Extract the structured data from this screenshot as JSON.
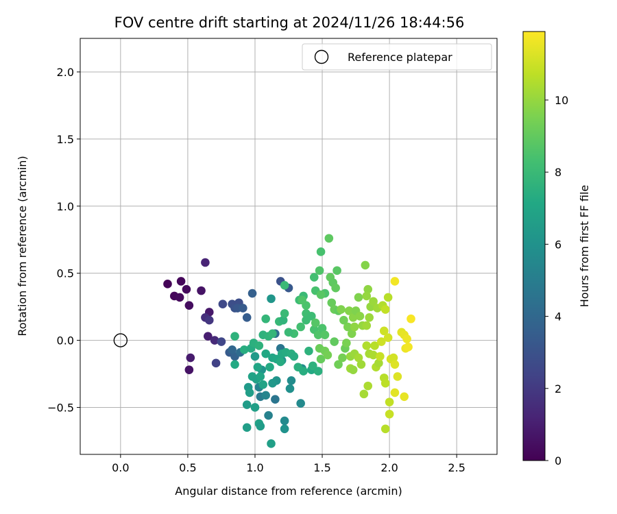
{
  "chart_data": {
    "type": "scatter",
    "title": "FOV centre drift starting at 2024/11/26 18:44:56",
    "xlabel": "Angular distance from reference (arcmin)",
    "ylabel": "Rotation from reference (arcmin)",
    "xlim": [
      -0.3,
      2.8
    ],
    "ylim": [
      -0.85,
      2.25
    ],
    "x_ticks": [
      0.0,
      0.5,
      1.0,
      1.5,
      2.0,
      2.5
    ],
    "x_tick_labels": [
      "0.0",
      "0.5",
      "1.0",
      "1.5",
      "2.0",
      "2.5"
    ],
    "y_ticks": [
      -0.5,
      0.0,
      0.5,
      1.0,
      1.5,
      2.0
    ],
    "y_tick_labels": [
      "−0.5",
      "0.0",
      "0.5",
      "1.0",
      "1.5",
      "2.0"
    ],
    "grid": true,
    "legend": {
      "placement": "top-right",
      "entries": [
        "Reference platepar"
      ]
    },
    "reference_point": {
      "x": 0.0,
      "y": 0.0,
      "label": "Reference platepar"
    },
    "colorbar": {
      "label": "Hours from first FF file",
      "range": [
        0,
        11.9
      ],
      "ticks": [
        0,
        2,
        4,
        6,
        8,
        10
      ],
      "tick_labels": [
        "0",
        "2",
        "4",
        "6",
        "8",
        "10"
      ],
      "colormap": "viridis"
    },
    "points": [
      {
        "x": 0.35,
        "y": 0.42,
        "c": 0.1
      },
      {
        "x": 0.45,
        "y": 0.44,
        "c": 0.2
      },
      {
        "x": 0.49,
        "y": 0.38,
        "c": 0.3
      },
      {
        "x": 0.4,
        "y": 0.33,
        "c": 0.2
      },
      {
        "x": 0.44,
        "y": 0.32,
        "c": 0.3
      },
      {
        "x": 0.51,
        "y": 0.26,
        "c": 0.4
      },
      {
        "x": 0.6,
        "y": 0.37,
        "c": 0.6
      },
      {
        "x": 0.66,
        "y": 0.21,
        "c": 0.8
      },
      {
        "x": 0.52,
        "y": -0.13,
        "c": 0.9
      },
      {
        "x": 0.51,
        "y": -0.22,
        "c": 0.6
      },
      {
        "x": 0.63,
        "y": 0.58,
        "c": 1.2
      },
      {
        "x": 0.65,
        "y": 0.03,
        "c": 1.0
      },
      {
        "x": 0.7,
        "y": 0.0,
        "c": 1.4
      },
      {
        "x": 0.63,
        "y": 0.17,
        "c": 1.6
      },
      {
        "x": 0.66,
        "y": 0.15,
        "c": 1.9
      },
      {
        "x": 0.71,
        "y": -0.17,
        "c": 2.3
      },
      {
        "x": 0.76,
        "y": 0.27,
        "c": 2.6
      },
      {
        "x": 0.75,
        "y": -0.01,
        "c": 2.5
      },
      {
        "x": 0.83,
        "y": 0.27,
        "c": 2.8
      },
      {
        "x": 0.85,
        "y": 0.24,
        "c": 3.0
      },
      {
        "x": 0.88,
        "y": 0.28,
        "c": 2.8
      },
      {
        "x": 0.87,
        "y": 0.24,
        "c": 3.2
      },
      {
        "x": 0.91,
        "y": 0.24,
        "c": 3.4
      },
      {
        "x": 0.94,
        "y": 0.17,
        "c": 3.5
      },
      {
        "x": 0.98,
        "y": 0.35,
        "c": 3.6
      },
      {
        "x": 0.81,
        "y": -0.09,
        "c": 3.4
      },
      {
        "x": 0.85,
        "y": -0.12,
        "c": 3.7
      },
      {
        "x": 0.83,
        "y": -0.07,
        "c": 3.9
      },
      {
        "x": 0.89,
        "y": -0.09,
        "c": 4.2
      },
      {
        "x": 1.19,
        "y": 0.44,
        "c": 3.0
      },
      {
        "x": 1.25,
        "y": 0.39,
        "c": 3.3
      },
      {
        "x": 1.15,
        "y": 0.05,
        "c": 4.2
      },
      {
        "x": 1.19,
        "y": -0.06,
        "c": 4.6
      },
      {
        "x": 1.15,
        "y": -0.44,
        "c": 4.6
      },
      {
        "x": 1.04,
        "y": -0.42,
        "c": 4.9
      },
      {
        "x": 1.1,
        "y": -0.56,
        "c": 5.2
      },
      {
        "x": 1.03,
        "y": -0.35,
        "c": 5.3
      },
      {
        "x": 1.08,
        "y": -0.41,
        "c": 5.4
      },
      {
        "x": 1.22,
        "y": -0.6,
        "c": 5.6
      },
      {
        "x": 1.22,
        "y": -0.66,
        "c": 6.0
      },
      {
        "x": 1.34,
        "y": -0.47,
        "c": 5.6
      },
      {
        "x": 1.35,
        "y": -0.21,
        "c": 5.8
      },
      {
        "x": 1.26,
        "y": -0.36,
        "c": 5.9
      },
      {
        "x": 1.27,
        "y": -0.3,
        "c": 5.7
      },
      {
        "x": 1.2,
        "y": -0.15,
        "c": 6.0
      },
      {
        "x": 1.16,
        "y": -0.3,
        "c": 6.1
      },
      {
        "x": 1.13,
        "y": -0.32,
        "c": 6.3
      },
      {
        "x": 1.05,
        "y": -0.22,
        "c": 6.1
      },
      {
        "x": 1.0,
        "y": -0.12,
        "c": 6.4
      },
      {
        "x": 0.95,
        "y": -0.35,
        "c": 6.4
      },
      {
        "x": 0.96,
        "y": -0.39,
        "c": 6.6
      },
      {
        "x": 0.94,
        "y": -0.48,
        "c": 6.5
      },
      {
        "x": 0.94,
        "y": -0.65,
        "c": 6.6
      },
      {
        "x": 1.0,
        "y": -0.5,
        "c": 6.7
      },
      {
        "x": 1.03,
        "y": -0.62,
        "c": 6.8
      },
      {
        "x": 1.04,
        "y": -0.64,
        "c": 6.5
      },
      {
        "x": 1.12,
        "y": -0.77,
        "c": 6.7
      },
      {
        "x": 1.12,
        "y": 0.31,
        "c": 6.2
      },
      {
        "x": 0.98,
        "y": -0.27,
        "c": 6.9
      },
      {
        "x": 1.01,
        "y": -0.29,
        "c": 6.8
      },
      {
        "x": 1.04,
        "y": -0.27,
        "c": 7.0
      },
      {
        "x": 1.06,
        "y": -0.33,
        "c": 6.9
      },
      {
        "x": 1.02,
        "y": -0.2,
        "c": 7.0
      },
      {
        "x": 1.08,
        "y": -0.1,
        "c": 7.1
      },
      {
        "x": 1.11,
        "y": -0.2,
        "c": 7.2
      },
      {
        "x": 1.13,
        "y": -0.13,
        "c": 7.0
      },
      {
        "x": 1.16,
        "y": -0.14,
        "c": 7.1
      },
      {
        "x": 1.19,
        "y": -0.16,
        "c": 7.3
      },
      {
        "x": 1.2,
        "y": -0.1,
        "c": 7.2
      },
      {
        "x": 1.23,
        "y": -0.09,
        "c": 7.3
      },
      {
        "x": 1.27,
        "y": -0.1,
        "c": 7.4
      },
      {
        "x": 1.29,
        "y": -0.12,
        "c": 7.3
      },
      {
        "x": 1.32,
        "y": -0.2,
        "c": 7.5
      },
      {
        "x": 1.36,
        "y": -0.23,
        "c": 7.4
      },
      {
        "x": 1.42,
        "y": -0.22,
        "c": 7.2
      },
      {
        "x": 1.43,
        "y": -0.19,
        "c": 7.6
      },
      {
        "x": 1.47,
        "y": -0.23,
        "c": 7.5
      },
      {
        "x": 1.4,
        "y": -0.08,
        "c": 7.6
      },
      {
        "x": 0.92,
        "y": -0.07,
        "c": 7.4
      },
      {
        "x": 0.97,
        "y": -0.06,
        "c": 7.3
      },
      {
        "x": 0.99,
        "y": -0.02,
        "c": 7.5
      },
      {
        "x": 1.03,
        "y": -0.04,
        "c": 7.6
      },
      {
        "x": 1.06,
        "y": 0.04,
        "c": 7.6
      },
      {
        "x": 1.1,
        "y": 0.03,
        "c": 7.7
      },
      {
        "x": 1.13,
        "y": 0.05,
        "c": 7.8
      },
      {
        "x": 0.85,
        "y": -0.18,
        "c": 7.2
      },
      {
        "x": 0.85,
        "y": 0.03,
        "c": 7.6
      },
      {
        "x": 1.08,
        "y": 0.16,
        "c": 7.8
      },
      {
        "x": 1.18,
        "y": 0.14,
        "c": 7.9
      },
      {
        "x": 1.21,
        "y": 0.15,
        "c": 7.7
      },
      {
        "x": 1.22,
        "y": 0.2,
        "c": 8.0
      },
      {
        "x": 1.22,
        "y": 0.41,
        "c": 8.0
      },
      {
        "x": 1.33,
        "y": 0.3,
        "c": 8.1
      },
      {
        "x": 1.36,
        "y": 0.33,
        "c": 8.0
      },
      {
        "x": 1.38,
        "y": 0.2,
        "c": 8.2
      },
      {
        "x": 1.42,
        "y": 0.18,
        "c": 8.1
      },
      {
        "x": 1.38,
        "y": 0.15,
        "c": 8.1
      },
      {
        "x": 1.34,
        "y": 0.1,
        "c": 8.3
      },
      {
        "x": 1.29,
        "y": 0.05,
        "c": 8.2
      },
      {
        "x": 1.25,
        "y": 0.06,
        "c": 8.0
      },
      {
        "x": 1.44,
        "y": 0.47,
        "c": 8.3
      },
      {
        "x": 1.45,
        "y": 0.37,
        "c": 8.4
      },
      {
        "x": 1.48,
        "y": 0.52,
        "c": 8.6
      },
      {
        "x": 1.49,
        "y": 0.66,
        "c": 8.4
      },
      {
        "x": 1.52,
        "y": 0.35,
        "c": 8.5
      },
      {
        "x": 1.44,
        "y": 0.08,
        "c": 8.4
      },
      {
        "x": 1.47,
        "y": 0.04,
        "c": 8.6
      },
      {
        "x": 1.5,
        "y": 0.09,
        "c": 8.5
      },
      {
        "x": 1.52,
        "y": 0.04,
        "c": 8.7
      },
      {
        "x": 1.45,
        "y": 0.13,
        "c": 8.7
      },
      {
        "x": 1.38,
        "y": 0.26,
        "c": 8.5
      },
      {
        "x": 1.35,
        "y": 0.3,
        "c": 8.6
      },
      {
        "x": 1.49,
        "y": 0.34,
        "c": 8.8
      },
      {
        "x": 1.55,
        "y": 0.76,
        "c": 8.9
      },
      {
        "x": 1.56,
        "y": 0.47,
        "c": 9.0
      },
      {
        "x": 1.58,
        "y": 0.43,
        "c": 8.9
      },
      {
        "x": 1.6,
        "y": 0.39,
        "c": 9.0
      },
      {
        "x": 1.61,
        "y": 0.52,
        "c": 8.8
      },
      {
        "x": 1.57,
        "y": 0.28,
        "c": 9.1
      },
      {
        "x": 1.59,
        "y": 0.23,
        "c": 9.2
      },
      {
        "x": 1.62,
        "y": 0.22,
        "c": 9.0
      },
      {
        "x": 1.48,
        "y": -0.06,
        "c": 9.2
      },
      {
        "x": 1.52,
        "y": -0.08,
        "c": 9.3
      },
      {
        "x": 1.49,
        "y": -0.14,
        "c": 9.1
      },
      {
        "x": 1.54,
        "y": -0.11,
        "c": 9.4
      },
      {
        "x": 1.59,
        "y": -0.01,
        "c": 9.0
      },
      {
        "x": 1.62,
        "y": -0.18,
        "c": 9.3
      },
      {
        "x": 1.65,
        "y": -0.13,
        "c": 9.4
      },
      {
        "x": 1.67,
        "y": -0.06,
        "c": 9.2
      },
      {
        "x": 1.68,
        "y": -0.02,
        "c": 9.5
      },
      {
        "x": 1.69,
        "y": 0.1,
        "c": 9.5
      },
      {
        "x": 1.72,
        "y": 0.05,
        "c": 9.6
      },
      {
        "x": 1.66,
        "y": 0.15,
        "c": 9.3
      },
      {
        "x": 1.64,
        "y": 0.23,
        "c": 9.6
      },
      {
        "x": 1.7,
        "y": 0.22,
        "c": 9.7
      },
      {
        "x": 1.73,
        "y": 0.17,
        "c": 9.8
      },
      {
        "x": 1.75,
        "y": 0.22,
        "c": 9.6
      },
      {
        "x": 1.74,
        "y": 0.1,
        "c": 9.9
      },
      {
        "x": 1.78,
        "y": 0.18,
        "c": 9.8
      },
      {
        "x": 1.77,
        "y": 0.32,
        "c": 9.6
      },
      {
        "x": 1.82,
        "y": 0.56,
        "c": 9.7
      },
      {
        "x": 1.84,
        "y": 0.38,
        "c": 9.9
      },
      {
        "x": 1.83,
        "y": 0.33,
        "c": 10.0
      },
      {
        "x": 1.86,
        "y": 0.25,
        "c": 10.0
      },
      {
        "x": 1.88,
        "y": 0.29,
        "c": 10.1
      },
      {
        "x": 1.91,
        "y": 0.24,
        "c": 10.2
      },
      {
        "x": 1.85,
        "y": 0.17,
        "c": 10.1
      },
      {
        "x": 1.8,
        "y": 0.11,
        "c": 10.0
      },
      {
        "x": 1.83,
        "y": 0.11,
        "c": 10.2
      },
      {
        "x": 1.71,
        "y": -0.12,
        "c": 10.0
      },
      {
        "x": 1.74,
        "y": -0.1,
        "c": 10.1
      },
      {
        "x": 1.71,
        "y": -0.21,
        "c": 10.2
      },
      {
        "x": 1.73,
        "y": -0.22,
        "c": 10.0
      },
      {
        "x": 1.77,
        "y": -0.13,
        "c": 10.3
      },
      {
        "x": 1.79,
        "y": -0.18,
        "c": 10.2
      },
      {
        "x": 1.81,
        "y": -0.4,
        "c": 10.3
      },
      {
        "x": 1.84,
        "y": -0.34,
        "c": 10.4
      },
      {
        "x": 1.85,
        "y": -0.1,
        "c": 10.3
      },
      {
        "x": 1.88,
        "y": -0.11,
        "c": 10.4
      },
      {
        "x": 1.9,
        "y": -0.2,
        "c": 10.5
      },
      {
        "x": 1.92,
        "y": -0.17,
        "c": 10.3
      },
      {
        "x": 1.89,
        "y": -0.04,
        "c": 10.6
      },
      {
        "x": 1.83,
        "y": -0.04,
        "c": 10.5
      },
      {
        "x": 1.95,
        "y": 0.26,
        "c": 10.5
      },
      {
        "x": 1.99,
        "y": 0.32,
        "c": 10.6
      },
      {
        "x": 1.97,
        "y": 0.23,
        "c": 10.8
      },
      {
        "x": 1.96,
        "y": -0.28,
        "c": 10.6
      },
      {
        "x": 1.97,
        "y": -0.32,
        "c": 10.7
      },
      {
        "x": 1.97,
        "y": -0.66,
        "c": 10.6
      },
      {
        "x": 2.0,
        "y": -0.46,
        "c": 10.8
      },
      {
        "x": 2.0,
        "y": -0.55,
        "c": 10.9
      },
      {
        "x": 1.93,
        "y": -0.12,
        "c": 10.9
      },
      {
        "x": 1.94,
        "y": -0.01,
        "c": 11.0
      },
      {
        "x": 1.96,
        "y": 0.07,
        "c": 11.0
      },
      {
        "x": 1.99,
        "y": 0.02,
        "c": 11.1
      },
      {
        "x": 2.01,
        "y": -0.14,
        "c": 11.2
      },
      {
        "x": 2.03,
        "y": -0.13,
        "c": 11.1
      },
      {
        "x": 2.04,
        "y": -0.18,
        "c": 11.3
      },
      {
        "x": 2.06,
        "y": -0.27,
        "c": 11.3
      },
      {
        "x": 2.04,
        "y": -0.39,
        "c": 11.4
      },
      {
        "x": 2.11,
        "y": -0.42,
        "c": 11.5
      },
      {
        "x": 2.09,
        "y": 0.06,
        "c": 11.4
      },
      {
        "x": 2.11,
        "y": 0.04,
        "c": 11.5
      },
      {
        "x": 2.12,
        "y": -0.06,
        "c": 11.6
      },
      {
        "x": 2.14,
        "y": -0.05,
        "c": 11.7
      },
      {
        "x": 2.13,
        "y": 0.01,
        "c": 11.6
      },
      {
        "x": 2.16,
        "y": 0.16,
        "c": 11.8
      },
      {
        "x": 2.04,
        "y": 0.44,
        "c": 11.7
      }
    ]
  }
}
